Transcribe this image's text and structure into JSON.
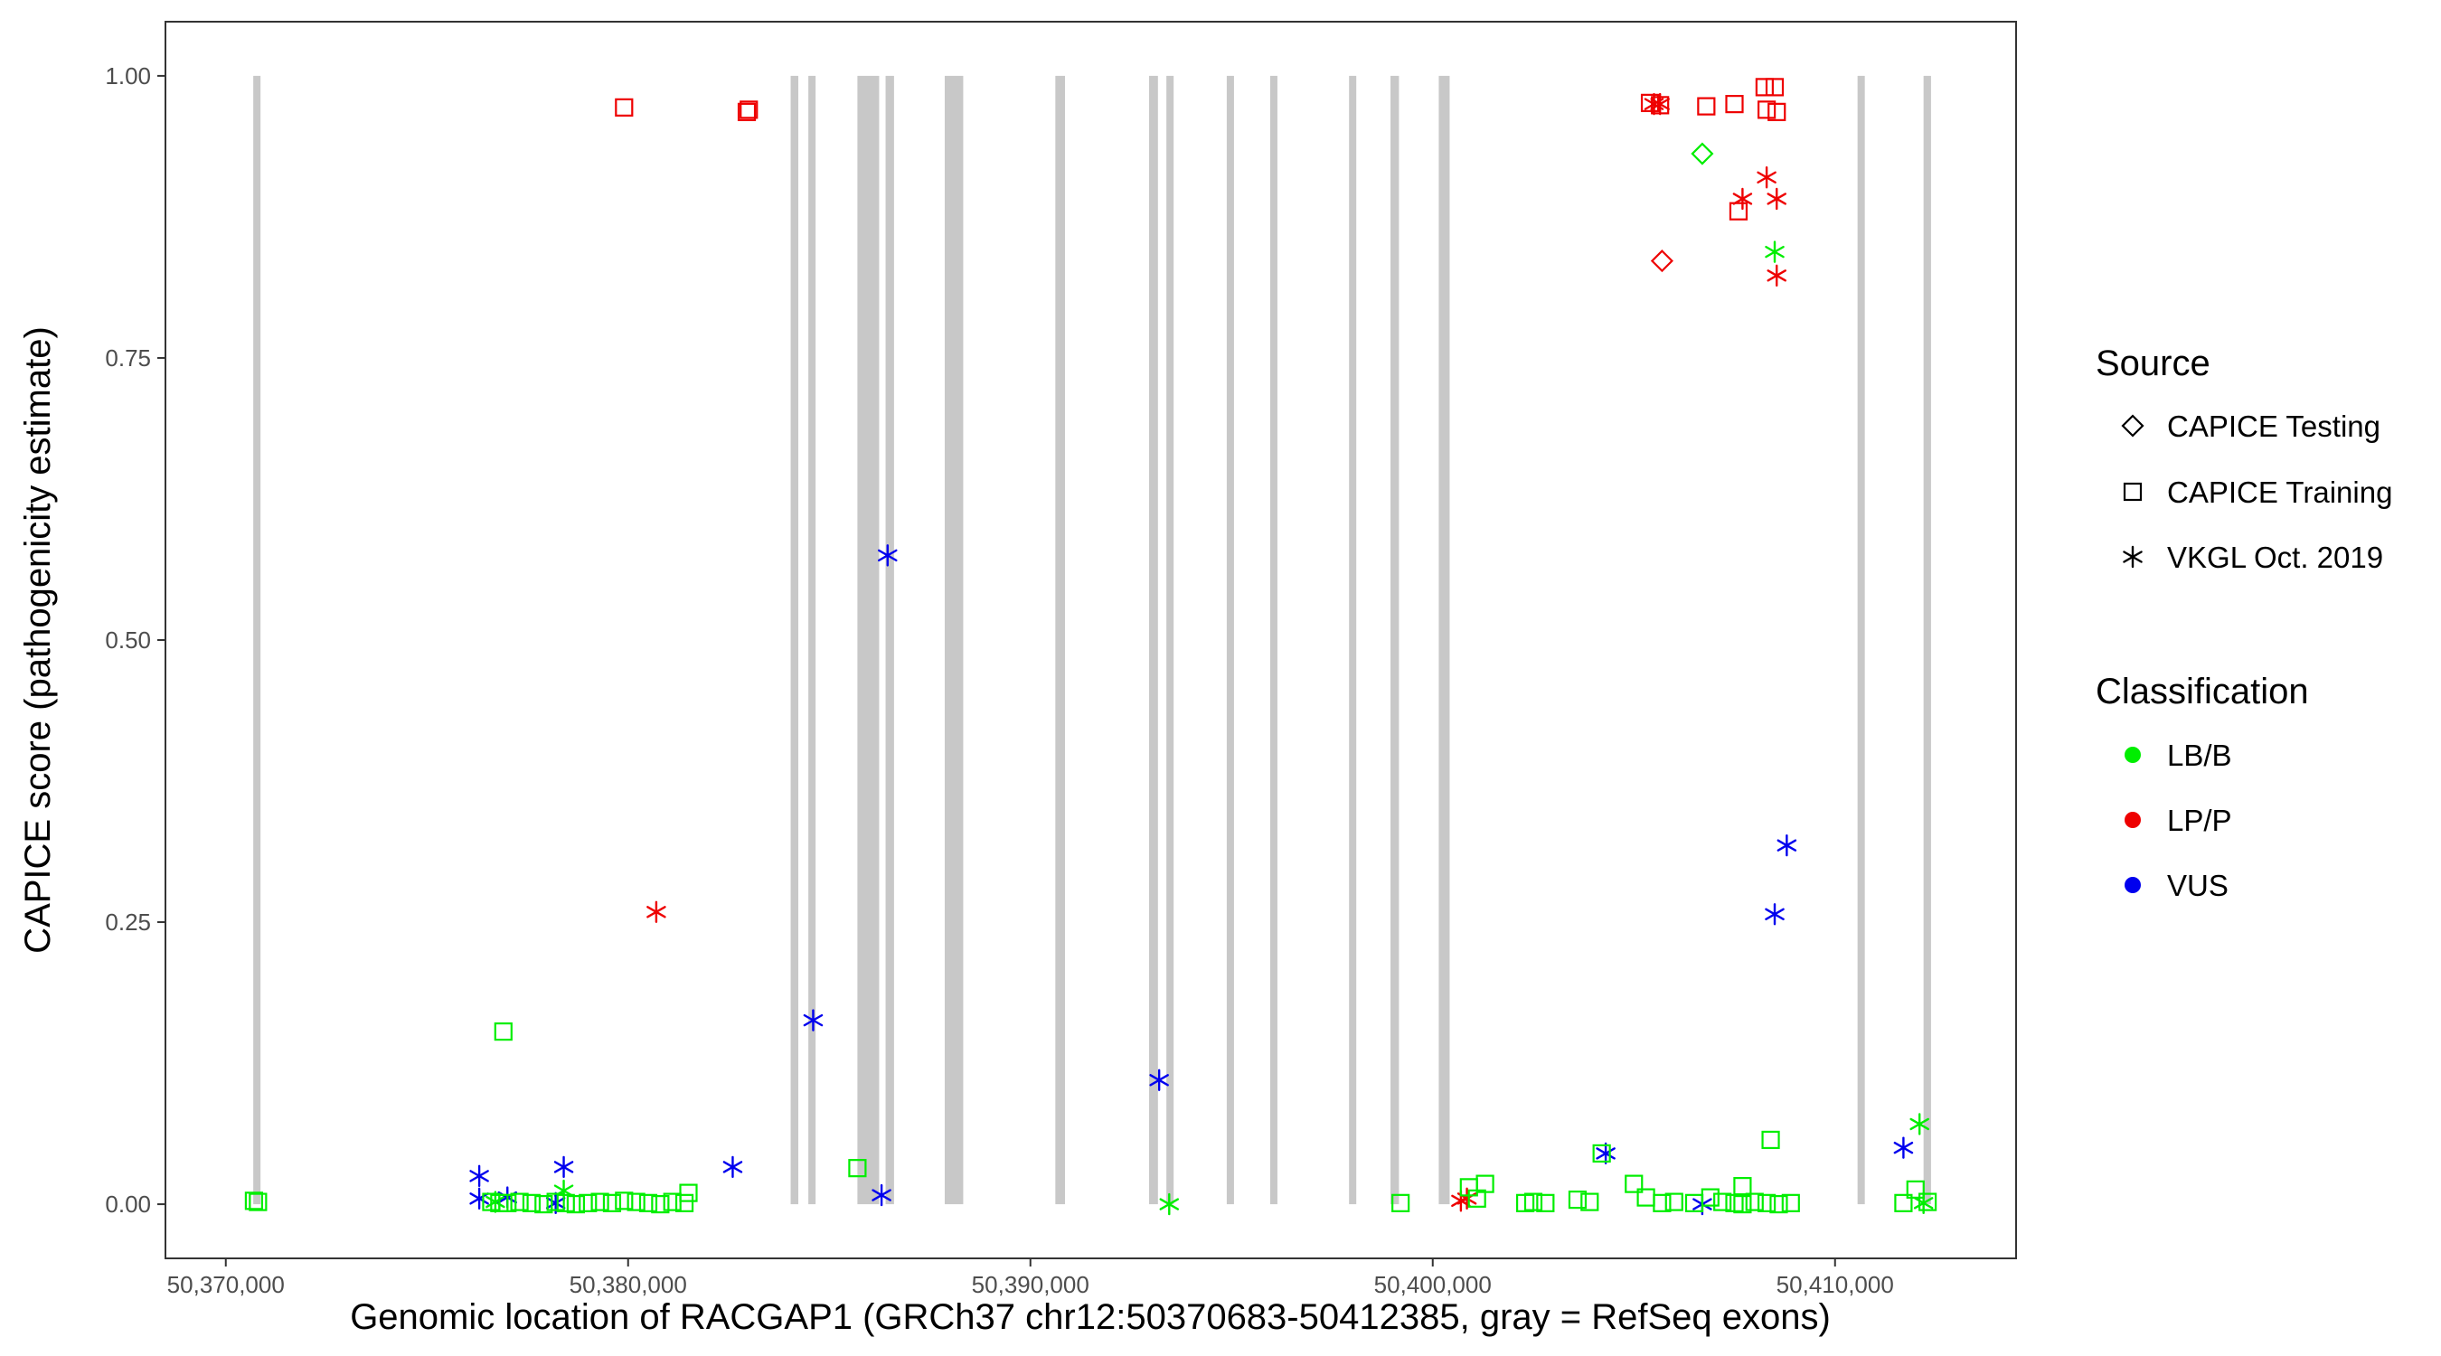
{
  "chart_data": {
    "type": "scatter",
    "title": "",
    "xlabel": "Genomic location of RACGAP1 (GRCh37 chr12:50370683-50412385, gray = RefSeq exons)",
    "ylabel": "CAPICE score (pathogenicity estimate)",
    "xlim": [
      50368500,
      50414500
    ],
    "ylim": [
      -0.048,
      1.048
    ],
    "xticks": [
      50370000,
      50380000,
      50390000,
      50400000,
      50410000
    ],
    "xtick_labels": [
      "50,370,000",
      "50,380,000",
      "50,390,000",
      "50,400,000",
      "50,410,000"
    ],
    "yticks": [
      0,
      0.25,
      0.5,
      0.75,
      1
    ],
    "ytick_labels": [
      "0.00",
      "0.25",
      "0.50",
      "0.75",
      "1.00"
    ],
    "grid": false,
    "legend_position": "right",
    "exons": [
      [
        50370683,
        50370860
      ],
      [
        50384040,
        50384230
      ],
      [
        50384480,
        50384660
      ],
      [
        50385700,
        50386240
      ],
      [
        50386400,
        50386610
      ],
      [
        50387870,
        50388330
      ],
      [
        50390620,
        50390860
      ],
      [
        50392950,
        50393170
      ],
      [
        50393380,
        50393560
      ],
      [
        50394880,
        50395060
      ],
      [
        50395960,
        50396110
      ],
      [
        50397920,
        50398100
      ],
      [
        50398950,
        50399160
      ],
      [
        50400150,
        50400420
      ],
      [
        50410560,
        50410720
      ],
      [
        50412200,
        50412385
      ]
    ],
    "legend": {
      "source_title": "Source",
      "source_items": [
        {
          "label": "CAPICE Testing",
          "shape": "diamond"
        },
        {
          "label": "CAPICE Training",
          "shape": "square"
        },
        {
          "label": "VKGL Oct. 2019",
          "shape": "asterisk"
        }
      ],
      "class_title": "Classification",
      "class_items": [
        {
          "label": "LB/B",
          "color": "#00ee00"
        },
        {
          "label": "LP/P",
          "color": "#ee0000"
        },
        {
          "label": "VUS",
          "color": "#0000ee"
        }
      ]
    },
    "colors": {
      "LB/B": "#00ee00",
      "LP/P": "#ee0000",
      "VUS": "#0000ee"
    },
    "series": [
      {
        "source": "CAPICE Training",
        "classification": "LP/P",
        "x": [
          50379900,
          50382950,
          50383000,
          50405400,
          50405650,
          50406800,
          50407500,
          50408250,
          50408500,
          50408300,
          50408550,
          50407600
        ],
        "y": [
          0.972,
          0.968,
          0.97,
          0.976,
          0.974,
          0.973,
          0.975,
          0.99,
          0.99,
          0.97,
          0.968,
          0.88
        ]
      },
      {
        "source": "CAPICE Testing",
        "classification": "LP/P",
        "x": [
          50405700
        ],
        "y": [
          0.836
        ]
      },
      {
        "source": "CAPICE Testing",
        "classification": "LB/B",
        "x": [
          50406700
        ],
        "y": [
          0.931
        ]
      },
      {
        "source": "VKGL Oct. 2019",
        "classification": "LP/P",
        "x": [
          50405500,
          50405650,
          50407700,
          50408300,
          50408550,
          50408550,
          50380700,
          50400700,
          50400850
        ],
        "y": [
          0.975,
          0.975,
          0.891,
          0.91,
          0.891,
          0.823,
          0.259,
          0.003,
          0.005
        ]
      },
      {
        "source": "VKGL Oct. 2019",
        "classification": "LB/B",
        "x": [
          50408500,
          50412100,
          50378400,
          50393450,
          50376700,
          50412200
        ],
        "y": [
          0.844,
          0.071,
          0.012,
          0.0,
          0.002,
          0.001
        ]
      },
      {
        "source": "VKGL Oct. 2019",
        "classification": "VUS",
        "x": [
          50386450,
          50384600,
          50393200,
          50382600,
          50386300,
          50376300,
          50376300,
          50377000,
          50378400,
          50378200,
          50404300,
          50406700,
          50411700,
          50408500,
          50408800
        ],
        "y": [
          0.575,
          0.163,
          0.11,
          0.033,
          0.008,
          0.025,
          0.005,
          0.006,
          0.033,
          0.001,
          0.045,
          0.0,
          0.05,
          0.257,
          0.318
        ]
      },
      {
        "source": "CAPICE Training",
        "classification": "LB/B",
        "x": [
          50370700,
          50370800,
          50376600,
          50376800,
          50377000,
          50377300,
          50377600,
          50377900,
          50378200,
          50378450,
          50378700,
          50379000,
          50379300,
          50379600,
          50379900,
          50380200,
          50380500,
          50380800,
          50381100,
          50381400,
          50381500,
          50376900,
          50385700,
          50399200,
          50400900,
          50401100,
          50401300,
          50402300,
          50402500,
          50402800,
          50403600,
          50403900,
          50404200,
          50405000,
          50405300,
          50405700,
          50406000,
          50406500,
          50406900,
          50407200,
          50407500,
          50407700,
          50408000,
          50408300,
          50408600,
          50408900,
          50408400,
          50407700,
          50411700,
          50412000,
          50412300
        ],
        "y": [
          0.003,
          0.002,
          0.002,
          0.001,
          0.001,
          0.002,
          0.001,
          0.0,
          0.002,
          0.001,
          0.0,
          0.001,
          0.002,
          0.001,
          0.003,
          0.002,
          0.001,
          0.0,
          0.002,
          0.001,
          0.01,
          0.153,
          0.032,
          0.001,
          0.015,
          0.005,
          0.018,
          0.001,
          0.002,
          0.001,
          0.004,
          0.002,
          0.045,
          0.018,
          0.006,
          0.001,
          0.002,
          0.001,
          0.006,
          0.002,
          0.001,
          0.016,
          0.002,
          0.001,
          0.0,
          0.001,
          0.057,
          0.0,
          0.001,
          0.013,
          0.002
        ]
      }
    ]
  }
}
